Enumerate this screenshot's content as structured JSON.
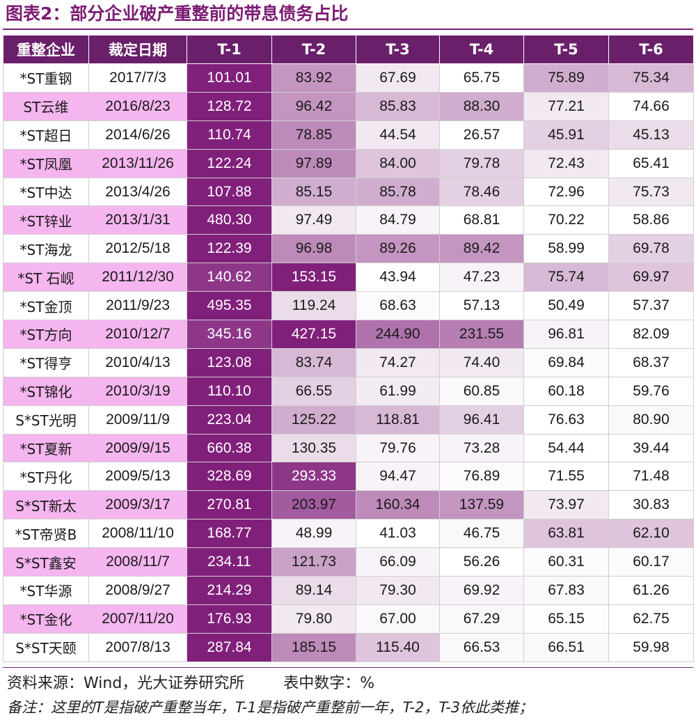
{
  "title": "图表2：部分企业破产重整前的带息债务占比",
  "colors": {
    "title": "#7b1d74",
    "header_bg": "#6a1f6b",
    "row_highlight": "#f5b5ef",
    "heat_max": "#7a1474"
  },
  "columns": [
    "重整企业",
    "裁定日期",
    "T-1",
    "T-2",
    "T-3",
    "T-4",
    "T-5",
    "T-6"
  ],
  "rows": [
    {
      "name": "*ST重钢",
      "date": "2017/7/3",
      "values": [
        "101.01",
        "83.92",
        "67.69",
        "65.75",
        "75.89",
        "75.34"
      ],
      "shade": [
        0.95,
        0.45,
        0.1,
        0.0,
        0.35,
        0.3
      ]
    },
    {
      "name": "ST云维",
      "date": "2016/8/23",
      "values": [
        "128.72",
        "96.42",
        "85.83",
        "88.30",
        "77.21",
        "74.66"
      ],
      "shade": [
        0.95,
        0.45,
        0.3,
        0.35,
        0.1,
        0.0
      ]
    },
    {
      "name": "*ST超日",
      "date": "2014/6/26",
      "values": [
        "110.74",
        "78.85",
        "44.54",
        "26.57",
        "45.91",
        "45.13"
      ],
      "shade": [
        0.95,
        0.5,
        0.1,
        0.0,
        0.2,
        0.15
      ]
    },
    {
      "name": "*ST凤凰",
      "date": "2013/11/26",
      "values": [
        "122.24",
        "97.89",
        "84.00",
        "79.78",
        "72.43",
        "65.41"
      ],
      "shade": [
        0.95,
        0.5,
        0.25,
        0.2,
        0.1,
        0.0
      ]
    },
    {
      "name": "*ST中达",
      "date": "2013/4/26",
      "values": [
        "107.88",
        "85.15",
        "85.78",
        "78.46",
        "72.96",
        "75.73"
      ],
      "shade": [
        0.95,
        0.35,
        0.35,
        0.2,
        0.0,
        0.1
      ]
    },
    {
      "name": "*ST锌业",
      "date": "2013/1/31",
      "values": [
        "480.30",
        "97.49",
        "84.79",
        "68.81",
        "70.22",
        "58.86"
      ],
      "shade": [
        0.95,
        0.1,
        0.05,
        0.0,
        0.0,
        0.0
      ]
    },
    {
      "name": "*ST海龙",
      "date": "2012/5/18",
      "values": [
        "122.39",
        "96.98",
        "89.26",
        "89.42",
        "58.99",
        "69.78"
      ],
      "shade": [
        0.95,
        0.5,
        0.45,
        0.45,
        0.0,
        0.2
      ]
    },
    {
      "name": "*ST 石岘",
      "date": "2011/12/30",
      "values": [
        "140.62",
        "153.15",
        "43.94",
        "47.23",
        "75.74",
        "69.97"
      ],
      "shade": [
        0.85,
        0.95,
        0.0,
        0.05,
        0.3,
        0.25
      ]
    },
    {
      "name": "*ST金顶",
      "date": "2011/9/23",
      "values": [
        "495.35",
        "119.24",
        "68.63",
        "57.13",
        "50.49",
        "57.37"
      ],
      "shade": [
        0.95,
        0.15,
        0.02,
        0.0,
        0.0,
        0.0
      ]
    },
    {
      "name": "*ST方向",
      "date": "2010/12/7",
      "values": [
        "345.16",
        "427.15",
        "244.90",
        "231.55",
        "96.81",
        "82.09"
      ],
      "shade": [
        0.85,
        0.95,
        0.6,
        0.55,
        0.05,
        0.0
      ]
    },
    {
      "name": "*ST得亨",
      "date": "2010/4/13",
      "values": [
        "123.08",
        "83.74",
        "74.27",
        "74.40",
        "69.84",
        "68.37"
      ],
      "shade": [
        0.95,
        0.3,
        0.1,
        0.1,
        0.02,
        0.0
      ]
    },
    {
      "name": "*ST锦化",
      "date": "2010/3/19",
      "values": [
        "110.10",
        "66.55",
        "61.99",
        "60.85",
        "60.18",
        "59.76"
      ],
      "shade": [
        0.95,
        0.2,
        0.08,
        0.03,
        0.0,
        0.0
      ]
    },
    {
      "name": "S*ST光明",
      "date": "2009/11/9",
      "values": [
        "223.04",
        "125.22",
        "118.81",
        "96.41",
        "76.63",
        "80.90"
      ],
      "shade": [
        0.95,
        0.35,
        0.3,
        0.2,
        0.0,
        0.03
      ]
    },
    {
      "name": "*ST夏新",
      "date": "2009/9/15",
      "values": [
        "660.38",
        "130.35",
        "79.76",
        "73.28",
        "54.44",
        "39.44"
      ],
      "shade": [
        0.95,
        0.15,
        0.05,
        0.05,
        0.0,
        0.0
      ]
    },
    {
      "name": "*ST丹化",
      "date": "2009/5/13",
      "values": [
        "328.69",
        "293.33",
        "94.47",
        "76.89",
        "71.55",
        "71.48"
      ],
      "shade": [
        0.95,
        0.85,
        0.05,
        0.02,
        0.0,
        0.0
      ]
    },
    {
      "name": "S*ST新太",
      "date": "2009/3/17",
      "values": [
        "270.81",
        "203.97",
        "160.34",
        "137.59",
        "73.97",
        "30.83"
      ],
      "shade": [
        0.95,
        0.7,
        0.5,
        0.45,
        0.1,
        0.0
      ]
    },
    {
      "name": "*ST帝贤B",
      "date": "2008/11/10",
      "values": [
        "168.77",
        "48.99",
        "41.03",
        "46.75",
        "63.81",
        "62.10"
      ],
      "shade": [
        0.95,
        0.05,
        0.0,
        0.03,
        0.25,
        0.25
      ]
    },
    {
      "name": "S*ST鑫安",
      "date": "2008/11/7",
      "values": [
        "234.11",
        "121.73",
        "66.09",
        "56.26",
        "60.31",
        "60.17"
      ],
      "shade": [
        0.95,
        0.4,
        0.05,
        0.0,
        0.02,
        0.02
      ]
    },
    {
      "name": "*ST华源",
      "date": "2008/9/27",
      "values": [
        "214.29",
        "89.14",
        "79.30",
        "69.92",
        "67.83",
        "61.26"
      ],
      "shade": [
        0.95,
        0.15,
        0.1,
        0.05,
        0.03,
        0.0
      ]
    },
    {
      "name": "*ST金化",
      "date": "2007/11/20",
      "values": [
        "176.93",
        "79.80",
        "67.00",
        "67.29",
        "65.15",
        "62.75"
      ],
      "shade": [
        0.95,
        0.1,
        0.03,
        0.03,
        0.01,
        0.0
      ]
    },
    {
      "name": "S*ST天颐",
      "date": "2007/8/13",
      "values": [
        "287.84",
        "185.15",
        "115.40",
        "66.53",
        "66.51",
        "59.98"
      ],
      "shade": [
        0.95,
        0.5,
        0.25,
        0.03,
        0.03,
        0.0
      ]
    }
  ],
  "footer": {
    "source": "资料来源：Wind，光大证券研究所",
    "unit": "表中数字：%",
    "note": "备注：这里的T是指破产重整当年，T-1是指破产重整前一年，T-2，T-3依此类推；"
  }
}
